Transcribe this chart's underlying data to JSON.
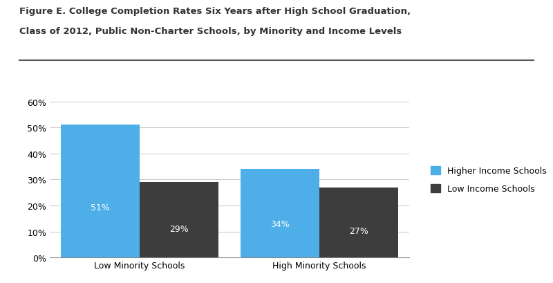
{
  "title_line1": "Figure E. College Completion Rates Six Years after High School Graduation,",
  "title_line2": "Class of 2012, Public Non-Charter Schools, by Minority and Income Levels",
  "categories": [
    "Low Minority Schools",
    "High Minority Schools"
  ],
  "higher_income_values": [
    0.51,
    0.34
  ],
  "low_income_values": [
    0.29,
    0.27
  ],
  "higher_income_labels": [
    "51%",
    "34%"
  ],
  "low_income_labels": [
    "29%",
    "27%"
  ],
  "higher_income_color": "#4DAEE8",
  "low_income_color": "#3D3D3D",
  "legend_higher": "Higher Income Schools",
  "legend_low": "Low Income Schools",
  "ylim": [
    0,
    0.6
  ],
  "yticks": [
    0.0,
    0.1,
    0.2,
    0.3,
    0.4,
    0.5,
    0.6
  ],
  "ytick_labels": [
    "0%",
    "10%",
    "20%",
    "30%",
    "40%",
    "50%",
    "60%"
  ],
  "background_color": "#ffffff",
  "bar_width": 0.35,
  "group_positions": [
    0.3,
    1.1
  ],
  "label_fontsize": 9,
  "axis_fontsize": 9,
  "title_fontsize": 9.5,
  "title_color": "#333333",
  "separator_color": "#555555",
  "grid_color": "#cccccc"
}
